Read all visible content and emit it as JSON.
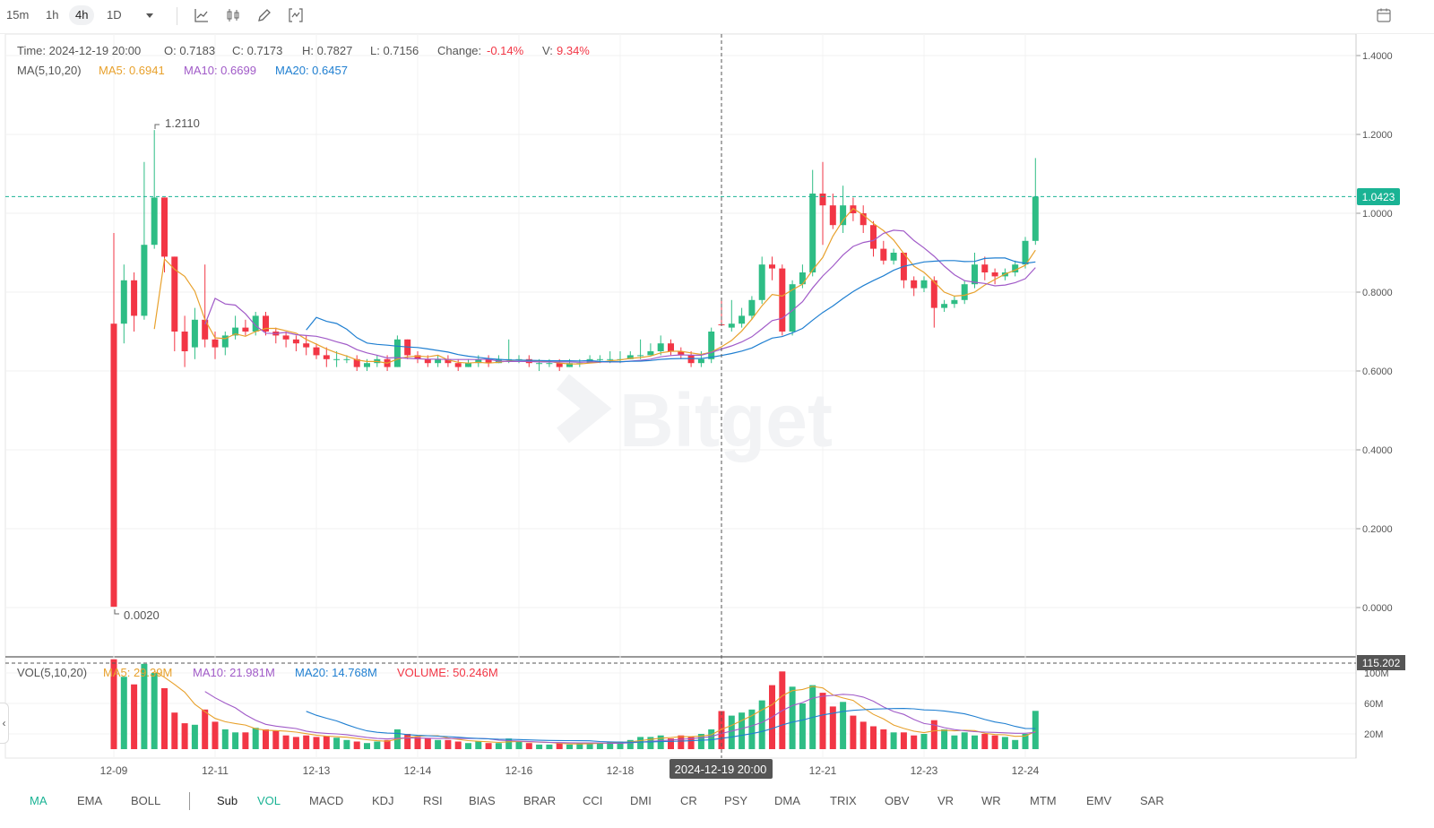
{
  "toolbar": {
    "intervals": [
      "15m",
      "1h",
      "4h",
      "1D"
    ],
    "active_interval": "4h",
    "dropdown_icon": "caret-down-icon",
    "tools": [
      "line-chart-icon",
      "candle-type-icon",
      "pencil-icon",
      "indicator-icon"
    ],
    "right_icon": "calendar-icon"
  },
  "info": {
    "time_label": "Time: 2024-12-19 20:00",
    "open_label": "O: 0.7183",
    "close_label": "C: 0.7173",
    "high_label": "H: 0.7827",
    "low_label": "L: 0.7156",
    "change_prefix": "Change:",
    "change_value": "-0.14%",
    "volpct_prefix": "V:",
    "volpct_value": "9.34%",
    "ma_label": "MA(5,10,20)",
    "ma5_label": "MA5: 0.6941",
    "ma10_label": "MA10: 0.6699",
    "ma20_label": "MA20: 0.6457"
  },
  "vol_info": {
    "label": "VOL(5,10,20)",
    "ma5_label": "MA5: 29.39M",
    "ma10_label": "MA10: 21.981M",
    "ma20_label": "MA20: 14.768M",
    "volume_label": "VOLUME: 50.246M"
  },
  "annotations": {
    "high_marker": "1.2110",
    "low_marker": "0.0020",
    "current_price": "1.0423",
    "volume_axis_flag": "115.202",
    "crosshair_time": "2024-12-19 20:00"
  },
  "watermark": "Bitget",
  "colors": {
    "up": "#2ebd85",
    "down": "#f23645",
    "ma5": "#e8a12c",
    "ma10": "#a15bc8",
    "ma20": "#1f7fd1",
    "accent": "#1ab394"
  },
  "chart_data": {
    "type": "candlestick",
    "interval": "4h",
    "price_axis_ticks": [
      "1.4000",
      "1.2000",
      "1.0000",
      "0.8000",
      "0.6000",
      "0.4000",
      "0.2000",
      "0.0000"
    ],
    "volume_axis_ticks": [
      "100M",
      "60M",
      "20M"
    ],
    "x_ticks": [
      {
        "label": "12-09",
        "index": 0
      },
      {
        "label": "12-11",
        "index": 10
      },
      {
        "label": "12-13",
        "index": 20
      },
      {
        "label": "12-14",
        "index": 30
      },
      {
        "label": "12-16",
        "index": 40
      },
      {
        "label": "12-18",
        "index": 50
      },
      {
        "label": "12-21",
        "index": 70
      },
      {
        "label": "12-23",
        "index": 80
      },
      {
        "label": "12-24",
        "index": 90
      }
    ],
    "crosshair_index": 60,
    "candles": [
      [
        0.72,
        0.002,
        0.95,
        0.002,
        118
      ],
      [
        0.72,
        0.83,
        0.87,
        0.67,
        95
      ],
      [
        0.83,
        0.74,
        0.85,
        0.7,
        85
      ],
      [
        0.74,
        0.92,
        1.13,
        0.73,
        112
      ],
      [
        0.92,
        1.04,
        1.211,
        0.91,
        100
      ],
      [
        1.04,
        0.89,
        1.04,
        0.85,
        80
      ],
      [
        0.89,
        0.7,
        0.89,
        0.65,
        48
      ],
      [
        0.7,
        0.65,
        0.74,
        0.61,
        34
      ],
      [
        0.66,
        0.73,
        0.76,
        0.63,
        32
      ],
      [
        0.73,
        0.68,
        0.87,
        0.66,
        52
      ],
      [
        0.68,
        0.66,
        0.7,
        0.63,
        36
      ],
      [
        0.66,
        0.69,
        0.7,
        0.64,
        26
      ],
      [
        0.69,
        0.71,
        0.74,
        0.68,
        22
      ],
      [
        0.71,
        0.7,
        0.73,
        0.69,
        22
      ],
      [
        0.7,
        0.74,
        0.75,
        0.69,
        28
      ],
      [
        0.74,
        0.7,
        0.75,
        0.69,
        26
      ],
      [
        0.7,
        0.69,
        0.71,
        0.67,
        24
      ],
      [
        0.69,
        0.68,
        0.7,
        0.66,
        18
      ],
      [
        0.68,
        0.67,
        0.69,
        0.65,
        16
      ],
      [
        0.67,
        0.66,
        0.69,
        0.64,
        18
      ],
      [
        0.66,
        0.64,
        0.67,
        0.63,
        16
      ],
      [
        0.64,
        0.63,
        0.66,
        0.61,
        17
      ],
      [
        0.63,
        0.63,
        0.65,
        0.61,
        15
      ],
      [
        0.63,
        0.63,
        0.64,
        0.62,
        12
      ],
      [
        0.63,
        0.61,
        0.64,
        0.6,
        10
      ],
      [
        0.61,
        0.62,
        0.63,
        0.6,
        8
      ],
      [
        0.62,
        0.63,
        0.64,
        0.61,
        10
      ],
      [
        0.63,
        0.61,
        0.64,
        0.6,
        12
      ],
      [
        0.61,
        0.68,
        0.69,
        0.61,
        26
      ],
      [
        0.68,
        0.64,
        0.68,
        0.63,
        20
      ],
      [
        0.64,
        0.63,
        0.65,
        0.62,
        16
      ],
      [
        0.63,
        0.62,
        0.64,
        0.61,
        14
      ],
      [
        0.62,
        0.63,
        0.64,
        0.61,
        12
      ],
      [
        0.63,
        0.62,
        0.64,
        0.61,
        12
      ],
      [
        0.62,
        0.61,
        0.63,
        0.6,
        10
      ],
      [
        0.61,
        0.62,
        0.63,
        0.61,
        8
      ],
      [
        0.62,
        0.63,
        0.64,
        0.61,
        10
      ],
      [
        0.63,
        0.62,
        0.64,
        0.61,
        8
      ],
      [
        0.62,
        0.63,
        0.64,
        0.62,
        8
      ],
      [
        0.63,
        0.63,
        0.68,
        0.62,
        14
      ],
      [
        0.63,
        0.63,
        0.64,
        0.62,
        10
      ],
      [
        0.63,
        0.62,
        0.64,
        0.61,
        8
      ],
      [
        0.62,
        0.62,
        0.63,
        0.6,
        6
      ],
      [
        0.62,
        0.62,
        0.63,
        0.61,
        6
      ],
      [
        0.62,
        0.61,
        0.63,
        0.6,
        8
      ],
      [
        0.61,
        0.62,
        0.63,
        0.61,
        6
      ],
      [
        0.62,
        0.62,
        0.63,
        0.61,
        8
      ],
      [
        0.62,
        0.63,
        0.64,
        0.62,
        8
      ],
      [
        0.63,
        0.63,
        0.64,
        0.62,
        8
      ],
      [
        0.63,
        0.63,
        0.65,
        0.62,
        10
      ],
      [
        0.63,
        0.63,
        0.65,
        0.62,
        10
      ],
      [
        0.63,
        0.64,
        0.65,
        0.63,
        12
      ],
      [
        0.64,
        0.64,
        0.68,
        0.63,
        16
      ],
      [
        0.64,
        0.65,
        0.67,
        0.64,
        16
      ],
      [
        0.65,
        0.67,
        0.69,
        0.64,
        18
      ],
      [
        0.67,
        0.65,
        0.68,
        0.64,
        14
      ],
      [
        0.65,
        0.64,
        0.66,
        0.63,
        18
      ],
      [
        0.64,
        0.62,
        0.65,
        0.61,
        16
      ],
      [
        0.62,
        0.63,
        0.65,
        0.61,
        20
      ],
      [
        0.63,
        0.7,
        0.71,
        0.62,
        26
      ],
      [
        0.7183,
        0.7173,
        0.7827,
        0.7156,
        50
      ],
      [
        0.71,
        0.72,
        0.78,
        0.7,
        44
      ],
      [
        0.72,
        0.74,
        0.76,
        0.71,
        48
      ],
      [
        0.74,
        0.78,
        0.79,
        0.73,
        52
      ],
      [
        0.78,
        0.87,
        0.89,
        0.77,
        64
      ],
      [
        0.87,
        0.86,
        0.89,
        0.83,
        84
      ],
      [
        0.86,
        0.7,
        0.87,
        0.69,
        102
      ],
      [
        0.7,
        0.82,
        0.83,
        0.69,
        82
      ],
      [
        0.82,
        0.85,
        0.87,
        0.81,
        60
      ],
      [
        0.85,
        1.05,
        1.11,
        0.84,
        84
      ],
      [
        1.05,
        1.02,
        1.13,
        0.92,
        74
      ],
      [
        1.02,
        0.97,
        1.05,
        0.96,
        56
      ],
      [
        0.97,
        1.02,
        1.07,
        0.95,
        62
      ],
      [
        1.02,
        1.0,
        1.04,
        0.98,
        44
      ],
      [
        1.0,
        0.97,
        1.02,
        0.95,
        36
      ],
      [
        0.97,
        0.91,
        0.98,
        0.89,
        30
      ],
      [
        0.91,
        0.88,
        0.93,
        0.87,
        26
      ],
      [
        0.88,
        0.9,
        0.91,
        0.87,
        22
      ],
      [
        0.9,
        0.83,
        0.9,
        0.81,
        22
      ],
      [
        0.83,
        0.81,
        0.84,
        0.79,
        18
      ],
      [
        0.81,
        0.83,
        0.84,
        0.8,
        20
      ],
      [
        0.83,
        0.76,
        0.84,
        0.71,
        38
      ],
      [
        0.76,
        0.77,
        0.78,
        0.75,
        26
      ],
      [
        0.77,
        0.78,
        0.79,
        0.76,
        18
      ],
      [
        0.78,
        0.82,
        0.83,
        0.77,
        22
      ],
      [
        0.82,
        0.87,
        0.9,
        0.81,
        18
      ],
      [
        0.87,
        0.85,
        0.89,
        0.83,
        20
      ],
      [
        0.85,
        0.84,
        0.86,
        0.82,
        18
      ],
      [
        0.84,
        0.85,
        0.86,
        0.83,
        16
      ],
      [
        0.85,
        0.87,
        0.88,
        0.84,
        12
      ],
      [
        0.87,
        0.93,
        0.94,
        0.86,
        20
      ],
      [
        0.93,
        1.0423,
        1.14,
        0.92,
        50.246
      ]
    ]
  },
  "bottom_bar": {
    "main_indicators": [
      "MA",
      "EMA",
      "BOLL"
    ],
    "main_active": "MA",
    "sub_label": "Sub",
    "sub_indicators": [
      "VOL",
      "MACD",
      "KDJ",
      "RSI",
      "BIAS",
      "BRAR",
      "CCI",
      "DMI",
      "CR",
      "PSY",
      "DMA",
      "TRIX",
      "OBV",
      "VR",
      "WR",
      "MTM",
      "EMV",
      "SAR"
    ],
    "sub_active": "VOL",
    "collapse_icon": "chevron-left-icon"
  }
}
